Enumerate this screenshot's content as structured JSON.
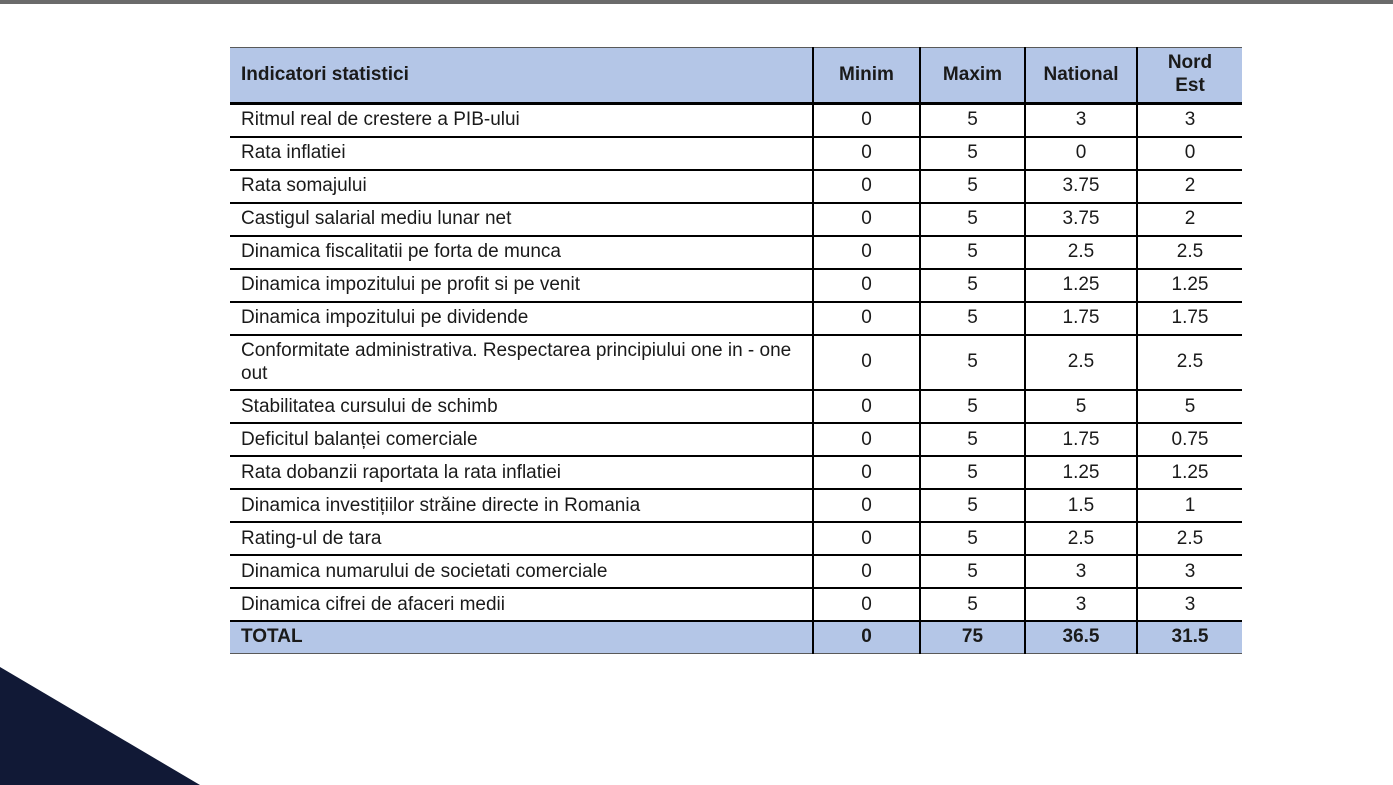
{
  "colors": {
    "header_bg": "#b4c6e7",
    "total_bg": "#b4c6e7",
    "top_bar": "#6b6b6b",
    "corner_triangle": "#111936",
    "border": "#000000"
  },
  "table": {
    "columns": [
      "Indicatori statistici",
      "Minim",
      "Maxim",
      "National",
      "Nord Est"
    ],
    "rows": [
      [
        "Ritmul real de crestere a PIB-ului",
        "0",
        "5",
        "3",
        "3"
      ],
      [
        "Rata inflatiei",
        "0",
        "5",
        "0",
        "0"
      ],
      [
        "Rata somajului",
        "0",
        "5",
        "3.75",
        "2"
      ],
      [
        "Castigul salarial mediu lunar net",
        "0",
        "5",
        "3.75",
        "2"
      ],
      [
        "Dinamica fiscalitatii pe forta de munca",
        "0",
        "5",
        "2.5",
        "2.5"
      ],
      [
        "Dinamica impozitului pe profit si pe venit",
        "0",
        "5",
        "1.25",
        "1.25"
      ],
      [
        "Dinamica impozitului pe dividende",
        "0",
        "5",
        "1.75",
        "1.75"
      ],
      [
        "Conformitate administrativa. Respectarea principiului one in - one out",
        "0",
        "5",
        "2.5",
        "2.5"
      ],
      [
        "Stabilitatea cursului de schimb",
        "0",
        "5",
        "5",
        "5"
      ],
      [
        "Deficitul balanței comerciale",
        "0",
        "5",
        "1.75",
        "0.75"
      ],
      [
        "Rata dobanzii raportata la rata inflatiei",
        "0",
        "5",
        "1.25",
        "1.25"
      ],
      [
        "Dinamica investițiilor străine directe in Romania",
        "0",
        "5",
        "1.5",
        "1"
      ],
      [
        "Rating-ul de tara",
        "0",
        "5",
        "2.5",
        "2.5"
      ],
      [
        "Dinamica numarului de societati comerciale",
        "0",
        "5",
        "3",
        "3"
      ],
      [
        "Dinamica cifrei de afaceri medii",
        "0",
        "5",
        "3",
        "3"
      ]
    ],
    "total_row": [
      "TOTAL",
      "0",
      "75",
      "36.5",
      "31.5"
    ]
  }
}
